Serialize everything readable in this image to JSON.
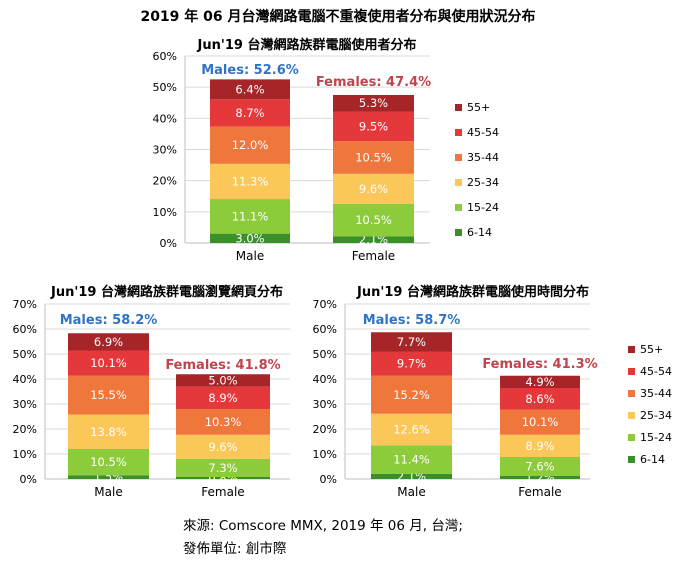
{
  "title": "2019 年 06 月台灣網路電腦不重複使用者分布與使用狀況分布",
  "source_line1": "來源: Comscore MMX, 2019 年 06 月, 台灣;",
  "source_line2": "發佈單位: 創市際",
  "colors": {
    "6-14": "#3a8f2b",
    "15-24": "#8ccb3a",
    "25-34": "#fcc759",
    "35-44": "#f0773c",
    "45-54": "#e5383b",
    "55+": "#a52529",
    "male_label": "#2e74c4",
    "female_label": "#c0444d"
  },
  "chart_data": [
    {
      "type": "bar",
      "stacked": true,
      "title": "Jun'19 台灣網路族群電腦使用者分布",
      "categories": [
        "Male",
        "Female"
      ],
      "ylim": [
        0,
        60
      ],
      "yticks": [
        "0%",
        "10%",
        "20%",
        "30%",
        "40%",
        "50%",
        "60%"
      ],
      "totals": [
        "Males: 52.6%",
        "Females: 47.4%"
      ],
      "legend": "right",
      "series": [
        {
          "name": "6-14",
          "values": [
            3.0,
            2.1
          ]
        },
        {
          "name": "15-24",
          "values": [
            11.1,
            10.5
          ]
        },
        {
          "name": "25-34",
          "values": [
            11.3,
            9.6
          ]
        },
        {
          "name": "35-44",
          "values": [
            12.0,
            10.5
          ]
        },
        {
          "name": "45-54",
          "values": [
            8.7,
            9.5
          ]
        },
        {
          "name": "55+",
          "values": [
            6.4,
            5.3
          ]
        }
      ]
    },
    {
      "type": "bar",
      "stacked": true,
      "title": "Jun'19 台灣網路族群電腦瀏覽網頁分布",
      "categories": [
        "Male",
        "Female"
      ],
      "ylim": [
        0,
        70
      ],
      "yticks": [
        "0%",
        "10%",
        "20%",
        "30%",
        "40%",
        "50%",
        "60%",
        "70%"
      ],
      "totals": [
        "Males: 58.2%",
        "Females: 41.8%"
      ],
      "series": [
        {
          "name": "6-14",
          "values": [
            1.5,
            0.8
          ]
        },
        {
          "name": "15-24",
          "values": [
            10.5,
            7.3
          ]
        },
        {
          "name": "25-34",
          "values": [
            13.8,
            9.6
          ]
        },
        {
          "name": "35-44",
          "values": [
            15.5,
            10.3
          ]
        },
        {
          "name": "45-54",
          "values": [
            10.1,
            8.9
          ]
        },
        {
          "name": "55+",
          "values": [
            6.9,
            5.0
          ]
        }
      ]
    },
    {
      "type": "bar",
      "stacked": true,
      "title": "Jun'19 台灣網路族群電腦使用時間分布",
      "categories": [
        "Male",
        "Female"
      ],
      "ylim": [
        0,
        70
      ],
      "yticks": [
        "0%",
        "10%",
        "20%",
        "30%",
        "40%",
        "50%",
        "60%",
        "70%"
      ],
      "totals": [
        "Males: 58.7%",
        "Females: 41.3%"
      ],
      "legend": "right",
      "series": [
        {
          "name": "6-14",
          "values": [
            2.1,
            1.2
          ]
        },
        {
          "name": "15-24",
          "values": [
            11.4,
            7.6
          ]
        },
        {
          "name": "25-34",
          "values": [
            12.6,
            8.9
          ]
        },
        {
          "name": "35-44",
          "values": [
            15.2,
            10.1
          ]
        },
        {
          "name": "45-54",
          "values": [
            9.7,
            8.6
          ]
        },
        {
          "name": "55+",
          "values": [
            7.7,
            4.9
          ]
        }
      ]
    }
  ]
}
